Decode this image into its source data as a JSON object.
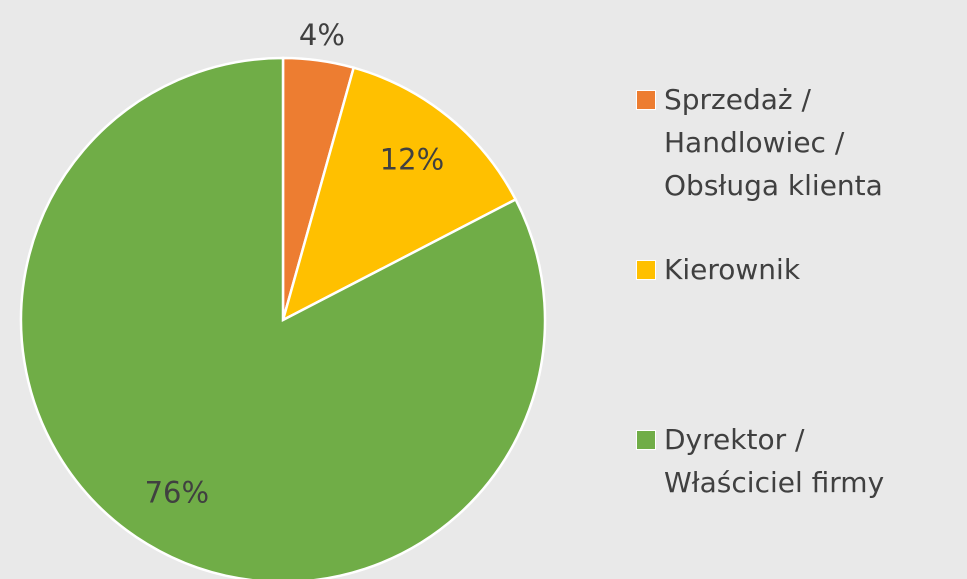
{
  "chart_data": {
    "type": "pie",
    "categories": [
      "Sprzedaż / Handlowiec / Obsługa klienta",
      "Kierownik",
      "Dyrektor / Właściciel firmy"
    ],
    "values": [
      4,
      12,
      76
    ],
    "value_labels": [
      "4%",
      "12%",
      "76%"
    ],
    "colors": [
      "#ed7d31",
      "#ffc000",
      "#70ad47"
    ],
    "legend": "right"
  }
}
